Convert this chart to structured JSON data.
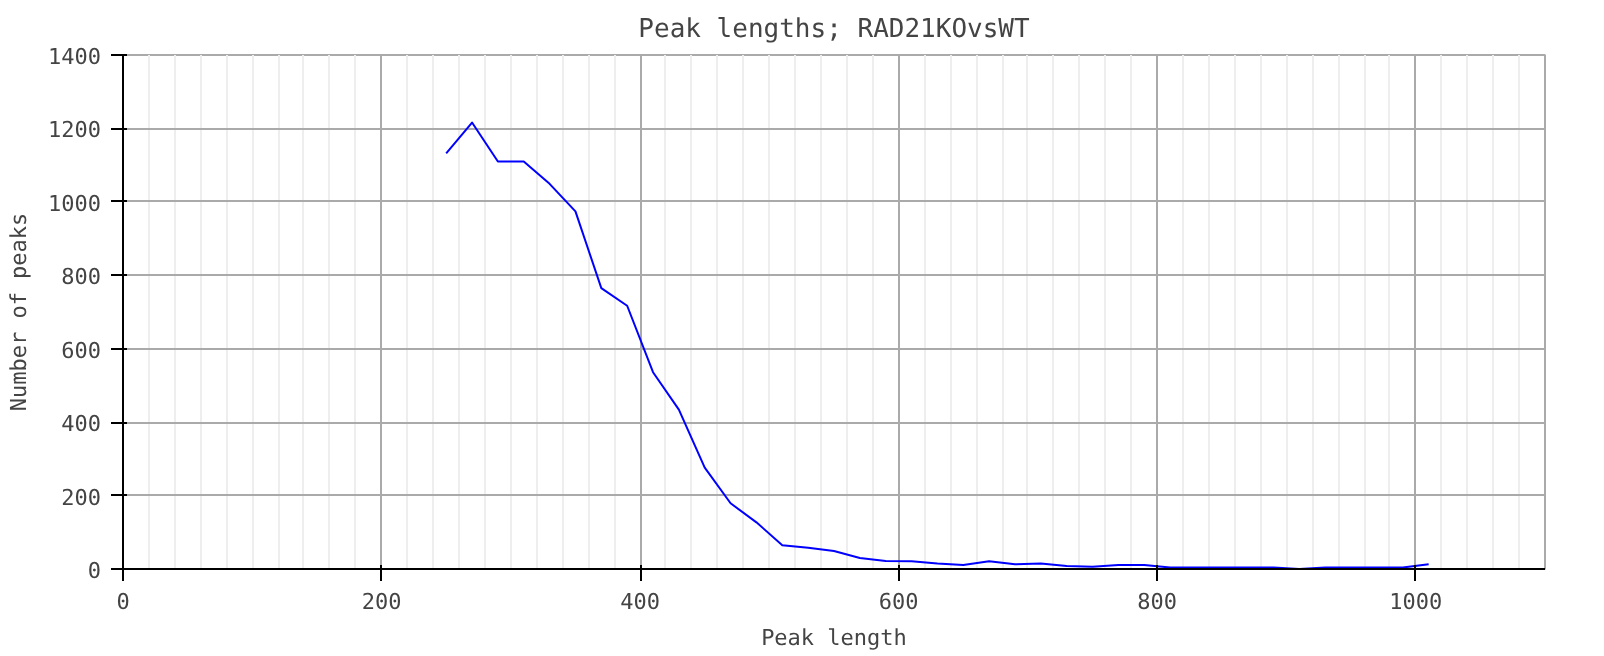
{
  "chart_data": {
    "type": "line",
    "title": "Peak lengths; RAD21KOvsWT",
    "xlabel": "Peak length",
    "ylabel": "Number of peaks",
    "x": [
      250,
      270,
      290,
      310,
      330,
      350,
      370,
      390,
      410,
      430,
      450,
      470,
      490,
      510,
      530,
      550,
      570,
      590,
      610,
      630,
      650,
      670,
      690,
      710,
      730,
      750,
      770,
      790,
      810,
      830,
      850,
      870,
      890,
      910,
      930,
      950,
      970,
      990,
      1010
    ],
    "series": [
      {
        "color": "#0000ff",
        "values": [
          1132,
          1216,
          1110,
          1110,
          1049,
          974,
          765,
          717,
          536,
          434,
          276,
          179,
          127,
          65,
          58,
          49,
          30,
          22,
          21,
          15,
          11,
          21,
          13,
          15,
          8,
          6,
          11,
          11,
          4,
          4,
          4,
          4,
          4,
          0,
          4,
          4,
          4,
          4,
          13
        ]
      }
    ],
    "xlim": [
      0,
      1100
    ],
    "xticks": [
      0,
      200,
      400,
      600,
      800,
      1000
    ],
    "ylim": [
      0,
      1400
    ],
    "yticks": [
      0,
      200,
      400,
      600,
      800,
      1000,
      1200,
      1400
    ],
    "grid": true,
    "marker": "none",
    "line_style": "solid"
  }
}
